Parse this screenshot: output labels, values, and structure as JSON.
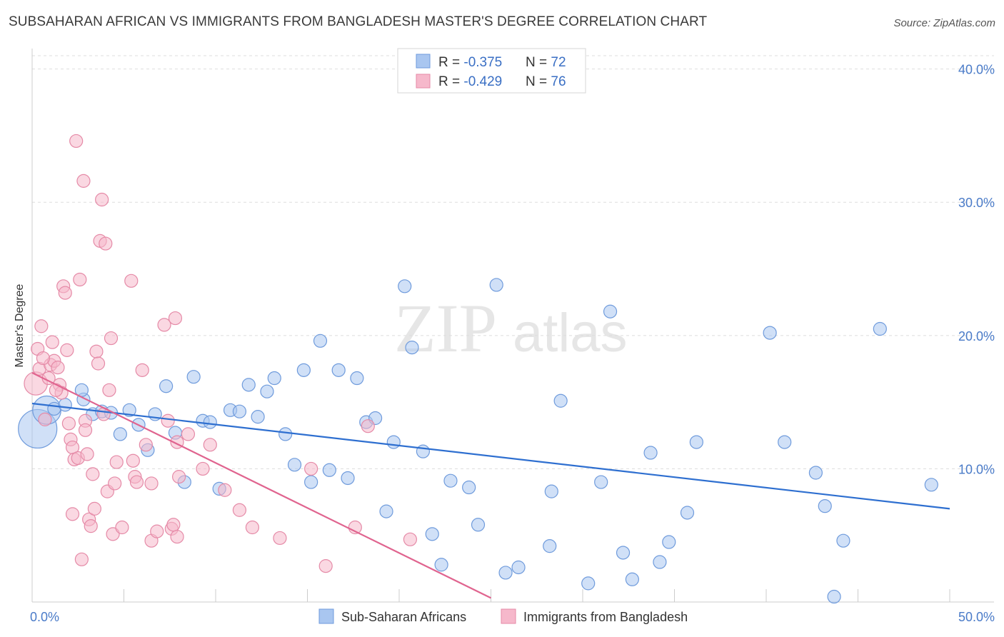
{
  "title": "SUBSAHARAN AFRICAN VS IMMIGRANTS FROM BANGLADESH MASTER'S DEGREE CORRELATION CHART",
  "source": "Source: ZipAtlas.com",
  "watermark": {
    "zip": "ZIP",
    "atlas": "atlas"
  },
  "colors": {
    "blue_fill": "#a9c6f0",
    "blue_stroke": "#6f9bdc",
    "blue_line": "#2e6fd0",
    "pink_fill": "#f6b8cb",
    "pink_stroke": "#e58aa7",
    "pink_line": "#e0648f",
    "grid": "#dddddd",
    "tick_text": "#4a7bc8"
  },
  "legend": {
    "rows": [
      {
        "r_label": "R = ",
        "r_value": "-0.375",
        "n_label": "N = ",
        "n_value": "72",
        "series": "blue"
      },
      {
        "r_label": "R = ",
        "r_value": "-0.429",
        "n_label": "N = ",
        "n_value": "76",
        "series": "pink"
      }
    ]
  },
  "chart_data": {
    "type": "scatter",
    "title": "SUBSAHARAN AFRICAN VS IMMIGRANTS FROM BANGLADESH MASTER'S DEGREE CORRELATION CHART",
    "xlabel": "",
    "ylabel": "Master's Degree",
    "xlim": [
      0,
      50
    ],
    "ylim": [
      0,
      41
    ],
    "x_tick_labels": [
      {
        "value": 0,
        "label": "0.0%"
      },
      {
        "value": 50,
        "label": "50.0%"
      }
    ],
    "y_tick_labels": [
      {
        "value": 10,
        "label": "10.0%"
      },
      {
        "value": 20,
        "label": "20.0%"
      },
      {
        "value": 30,
        "label": "30.0%"
      },
      {
        "value": 40,
        "label": "40.0%"
      }
    ],
    "y_gridlines": [
      10,
      20,
      30,
      40
    ],
    "legend_position": "top-center",
    "series": [
      {
        "name": "Sub-Saharan Africans",
        "color": "#a9c6f0",
        "trend": {
          "x": [
            0,
            50
          ],
          "y": [
            14.9,
            7.0
          ]
        },
        "points": [
          {
            "x": 0.3,
            "y": 13.0,
            "s": 3
          },
          {
            "x": 0.8,
            "y": 14.4,
            "s": 2.2
          },
          {
            "x": 1.2,
            "y": 14.5
          },
          {
            "x": 1.8,
            "y": 14.8
          },
          {
            "x": 2.8,
            "y": 15.2
          },
          {
            "x": 2.7,
            "y": 15.9
          },
          {
            "x": 3.3,
            "y": 14.1
          },
          {
            "x": 3.8,
            "y": 14.3
          },
          {
            "x": 4.3,
            "y": 14.2
          },
          {
            "x": 4.8,
            "y": 12.6
          },
          {
            "x": 5.3,
            "y": 14.4
          },
          {
            "x": 5.8,
            "y": 13.3
          },
          {
            "x": 6.3,
            "y": 11.4
          },
          {
            "x": 6.7,
            "y": 14.1
          },
          {
            "x": 7.3,
            "y": 16.2
          },
          {
            "x": 7.8,
            "y": 12.7
          },
          {
            "x": 8.3,
            "y": 9.0
          },
          {
            "x": 8.8,
            "y": 16.9
          },
          {
            "x": 9.3,
            "y": 13.6
          },
          {
            "x": 9.7,
            "y": 13.5
          },
          {
            "x": 10.2,
            "y": 8.5
          },
          {
            "x": 10.8,
            "y": 14.4
          },
          {
            "x": 11.3,
            "y": 14.3
          },
          {
            "x": 11.8,
            "y": 16.3
          },
          {
            "x": 12.3,
            "y": 13.9
          },
          {
            "x": 12.8,
            "y": 15.8
          },
          {
            "x": 13.2,
            "y": 16.8
          },
          {
            "x": 13.8,
            "y": 12.6
          },
          {
            "x": 14.3,
            "y": 10.3
          },
          {
            "x": 14.8,
            "y": 17.4
          },
          {
            "x": 15.2,
            "y": 9.0
          },
          {
            "x": 15.7,
            "y": 19.6
          },
          {
            "x": 16.2,
            "y": 9.9
          },
          {
            "x": 16.7,
            "y": 17.4
          },
          {
            "x": 17.2,
            "y": 9.3
          },
          {
            "x": 17.7,
            "y": 16.8
          },
          {
            "x": 18.2,
            "y": 13.5
          },
          {
            "x": 18.7,
            "y": 13.8
          },
          {
            "x": 19.3,
            "y": 6.8
          },
          {
            "x": 19.7,
            "y": 12.0
          },
          {
            "x": 20.3,
            "y": 23.7
          },
          {
            "x": 20.7,
            "y": 19.1
          },
          {
            "x": 21.3,
            "y": 11.3
          },
          {
            "x": 21.8,
            "y": 5.1
          },
          {
            "x": 22.3,
            "y": 2.8
          },
          {
            "x": 22.8,
            "y": 9.1
          },
          {
            "x": 23.8,
            "y": 8.6
          },
          {
            "x": 24.3,
            "y": 5.8
          },
          {
            "x": 25.3,
            "y": 23.8
          },
          {
            "x": 25.8,
            "y": 2.2
          },
          {
            "x": 26.5,
            "y": 2.6
          },
          {
            "x": 28.2,
            "y": 4.2
          },
          {
            "x": 28.3,
            "y": 8.3
          },
          {
            "x": 28.8,
            "y": 15.1
          },
          {
            "x": 30.3,
            "y": 1.4
          },
          {
            "x": 31.0,
            "y": 9.0
          },
          {
            "x": 31.5,
            "y": 21.8
          },
          {
            "x": 32.2,
            "y": 3.7
          },
          {
            "x": 32.7,
            "y": 1.7
          },
          {
            "x": 33.7,
            "y": 11.2
          },
          {
            "x": 34.2,
            "y": 3.0
          },
          {
            "x": 34.7,
            "y": 4.5
          },
          {
            "x": 35.7,
            "y": 6.7
          },
          {
            "x": 36.2,
            "y": 12.0
          },
          {
            "x": 40.2,
            "y": 20.2
          },
          {
            "x": 41.0,
            "y": 12.0
          },
          {
            "x": 42.7,
            "y": 9.7
          },
          {
            "x": 43.2,
            "y": 7.2
          },
          {
            "x": 43.7,
            "y": 0.4
          },
          {
            "x": 44.2,
            "y": 4.6
          },
          {
            "x": 46.2,
            "y": 20.5
          },
          {
            "x": 49.0,
            "y": 8.8
          }
        ]
      },
      {
        "name": "Immigrants from Bangladesh",
        "color": "#f6b8cb",
        "trend": {
          "x": [
            0,
            25
          ],
          "y": [
            17.2,
            0.3
          ]
        },
        "points": [
          {
            "x": 0.2,
            "y": 16.4,
            "s": 1.8
          },
          {
            "x": 0.3,
            "y": 19.0
          },
          {
            "x": 0.4,
            "y": 17.5
          },
          {
            "x": 0.5,
            "y": 20.7
          },
          {
            "x": 0.7,
            "y": 13.7
          },
          {
            "x": 0.9,
            "y": 16.8
          },
          {
            "x": 1.0,
            "y": 17.8
          },
          {
            "x": 1.1,
            "y": 19.5
          },
          {
            "x": 1.2,
            "y": 18.1
          },
          {
            "x": 1.5,
            "y": 16.3
          },
          {
            "x": 1.6,
            "y": 15.7
          },
          {
            "x": 1.7,
            "y": 23.7
          },
          {
            "x": 1.8,
            "y": 23.2
          },
          {
            "x": 1.9,
            "y": 18.9
          },
          {
            "x": 2.0,
            "y": 13.4
          },
          {
            "x": 2.1,
            "y": 12.2
          },
          {
            "x": 2.2,
            "y": 11.6
          },
          {
            "x": 2.2,
            "y": 6.6
          },
          {
            "x": 2.3,
            "y": 10.7
          },
          {
            "x": 2.4,
            "y": 34.6
          },
          {
            "x": 2.5,
            "y": 10.8
          },
          {
            "x": 2.6,
            "y": 24.2
          },
          {
            "x": 2.7,
            "y": 3.2
          },
          {
            "x": 2.8,
            "y": 31.6
          },
          {
            "x": 2.9,
            "y": 13.6
          },
          {
            "x": 3.0,
            "y": 11.1
          },
          {
            "x": 3.1,
            "y": 6.2
          },
          {
            "x": 3.2,
            "y": 5.7
          },
          {
            "x": 3.3,
            "y": 9.6
          },
          {
            "x": 3.5,
            "y": 18.8
          },
          {
            "x": 3.6,
            "y": 17.9
          },
          {
            "x": 3.7,
            "y": 27.1
          },
          {
            "x": 3.8,
            "y": 30.2
          },
          {
            "x": 3.9,
            "y": 14.1
          },
          {
            "x": 4.0,
            "y": 26.9
          },
          {
            "x": 4.1,
            "y": 8.3
          },
          {
            "x": 4.2,
            "y": 15.9
          },
          {
            "x": 4.3,
            "y": 19.8
          },
          {
            "x": 4.4,
            "y": 5.1
          },
          {
            "x": 4.5,
            "y": 8.9
          },
          {
            "x": 4.6,
            "y": 10.5
          },
          {
            "x": 4.9,
            "y": 5.6
          },
          {
            "x": 5.4,
            "y": 24.1
          },
          {
            "x": 5.5,
            "y": 10.6
          },
          {
            "x": 5.6,
            "y": 9.4
          },
          {
            "x": 6.0,
            "y": 17.4
          },
          {
            "x": 6.2,
            "y": 11.8
          },
          {
            "x": 6.5,
            "y": 4.6
          },
          {
            "x": 6.8,
            "y": 5.3
          },
          {
            "x": 7.2,
            "y": 20.8
          },
          {
            "x": 7.4,
            "y": 13.6
          },
          {
            "x": 7.6,
            "y": 5.5
          },
          {
            "x": 7.8,
            "y": 21.3
          },
          {
            "x": 7.9,
            "y": 12.0
          },
          {
            "x": 8.0,
            "y": 9.4
          },
          {
            "x": 8.5,
            "y": 12.6
          },
          {
            "x": 9.3,
            "y": 10.0
          },
          {
            "x": 9.7,
            "y": 11.8
          },
          {
            "x": 10.5,
            "y": 8.4
          },
          {
            "x": 11.3,
            "y": 6.9
          },
          {
            "x": 12.0,
            "y": 5.6
          },
          {
            "x": 13.5,
            "y": 4.8
          },
          {
            "x": 15.2,
            "y": 10.0
          },
          {
            "x": 16.0,
            "y": 2.7
          },
          {
            "x": 17.6,
            "y": 5.6
          },
          {
            "x": 18.3,
            "y": 13.2
          },
          {
            "x": 20.6,
            "y": 4.7
          },
          {
            "x": 7.7,
            "y": 5.8
          },
          {
            "x": 6.5,
            "y": 8.9
          },
          {
            "x": 5.7,
            "y": 9.0
          },
          {
            "x": 1.4,
            "y": 17.6
          },
          {
            "x": 0.6,
            "y": 18.3
          },
          {
            "x": 1.3,
            "y": 15.9
          },
          {
            "x": 3.4,
            "y": 7.0
          },
          {
            "x": 2.9,
            "y": 12.9
          },
          {
            "x": 7.9,
            "y": 4.9
          }
        ]
      }
    ]
  },
  "bottom_legend": [
    {
      "label": "Sub-Saharan Africans",
      "series": "blue"
    },
    {
      "label": "Immigrants from Bangladesh",
      "series": "pink"
    }
  ]
}
